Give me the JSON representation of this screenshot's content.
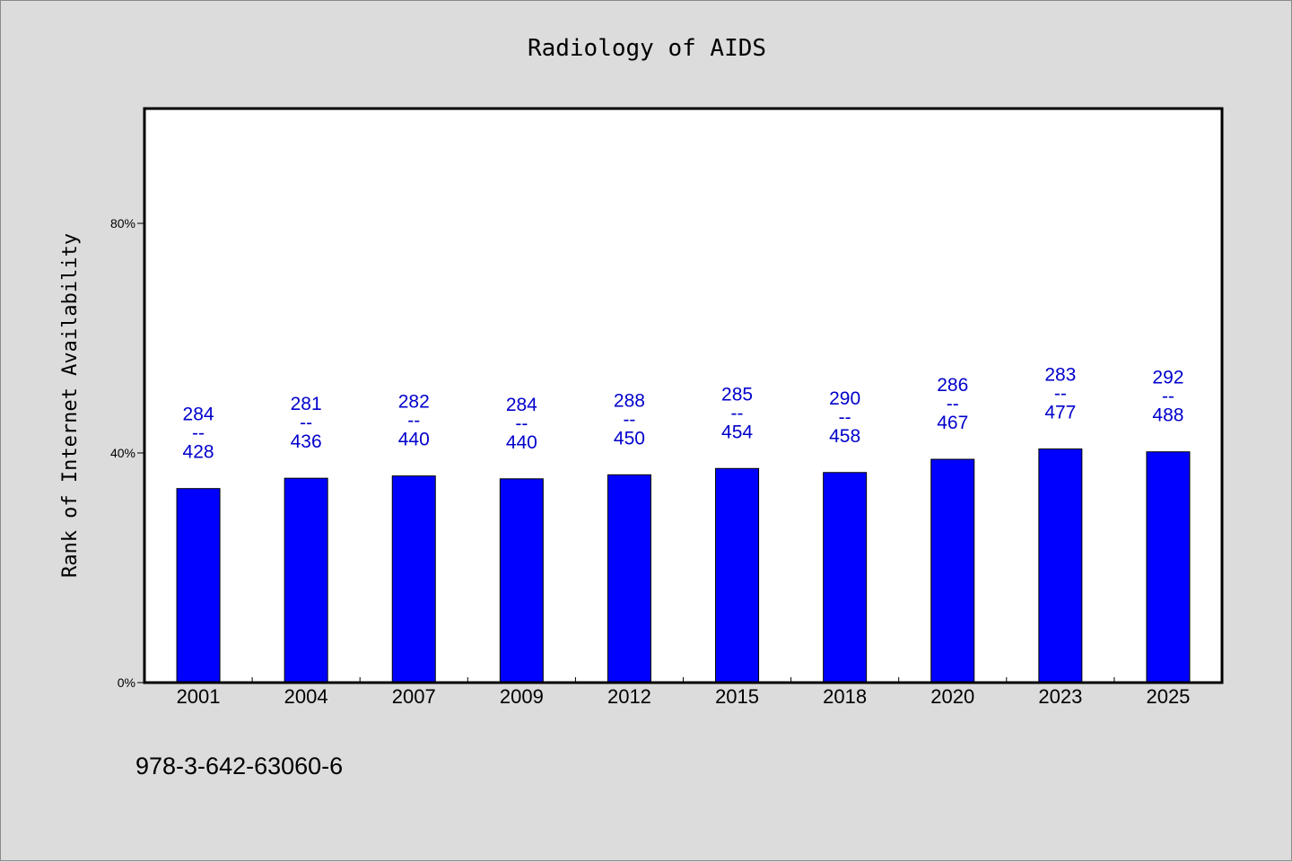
{
  "chart_data": {
    "type": "bar",
    "title": "Radiology of AIDS",
    "xlabel": "",
    "ylabel": "Rank of Internet Availability",
    "categories": [
      "2001",
      "2004",
      "2007",
      "2009",
      "2012",
      "2015",
      "2018",
      "2020",
      "2023",
      "2025"
    ],
    "values": [
      33.8,
      35.6,
      36.0,
      35.5,
      36.2,
      37.3,
      36.6,
      38.9,
      40.7,
      40.2
    ],
    "data_labels": [
      [
        "284",
        "--",
        "428"
      ],
      [
        "281",
        "--",
        "436"
      ],
      [
        "282",
        "--",
        "440"
      ],
      [
        "284",
        "--",
        "440"
      ],
      [
        "288",
        "--",
        "450"
      ],
      [
        "285",
        "--",
        "454"
      ],
      [
        "290",
        "--",
        "458"
      ],
      [
        "286",
        "--",
        "467"
      ],
      [
        "283",
        "--",
        "477"
      ],
      [
        "292",
        "--",
        "488"
      ]
    ],
    "yticks": [
      0,
      40,
      80
    ],
    "ytick_labels": [
      "0%",
      "40%",
      "80%"
    ],
    "ylim": [
      0,
      100
    ],
    "grid": false,
    "legend": "none",
    "bar_color": "#0000ff",
    "label_color": "#0000cc"
  },
  "footer": {
    "isbn": "978-3-642-63060-6"
  }
}
